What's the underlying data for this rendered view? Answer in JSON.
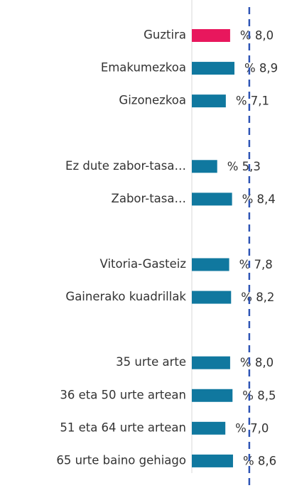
{
  "chart_data": {
    "type": "bar",
    "orientation": "horizontal",
    "categories": [
      "Guztira",
      "Emakumezkoa",
      "Gizonezkoa",
      null,
      "Ez dute zabor-tasa…",
      "Zabor-tasa…",
      null,
      "Vitoria-Gasteiz",
      "Gainerako kuadrillak",
      null,
      "35 urte arte",
      "36 eta 50 urte artean",
      "51 eta 64 urte artean",
      "65 urte baino gehiago"
    ],
    "values": [
      8.0,
      8.9,
      7.1,
      null,
      5.3,
      8.4,
      null,
      7.8,
      8.2,
      null,
      8.0,
      8.5,
      7.0,
      8.6
    ],
    "value_labels": [
      "% 8,0",
      "% 8,9",
      "% 7,1",
      null,
      "% 5,3",
      "% 8,4",
      null,
      "% 7,8",
      "% 8,2",
      null,
      "% 8,0",
      "% 8,5",
      "% 7,0",
      "% 8,6"
    ],
    "colors": [
      "#e8175d",
      "#10789f",
      "#10789f",
      null,
      "#10789f",
      "#10789f",
      null,
      "#10789f",
      "#10789f",
      null,
      "#10789f",
      "#10789f",
      "#10789f",
      "#10789f"
    ],
    "xlim": [
      0,
      20
    ],
    "reference_line": 12,
    "reference_color": "#2f55b5"
  }
}
